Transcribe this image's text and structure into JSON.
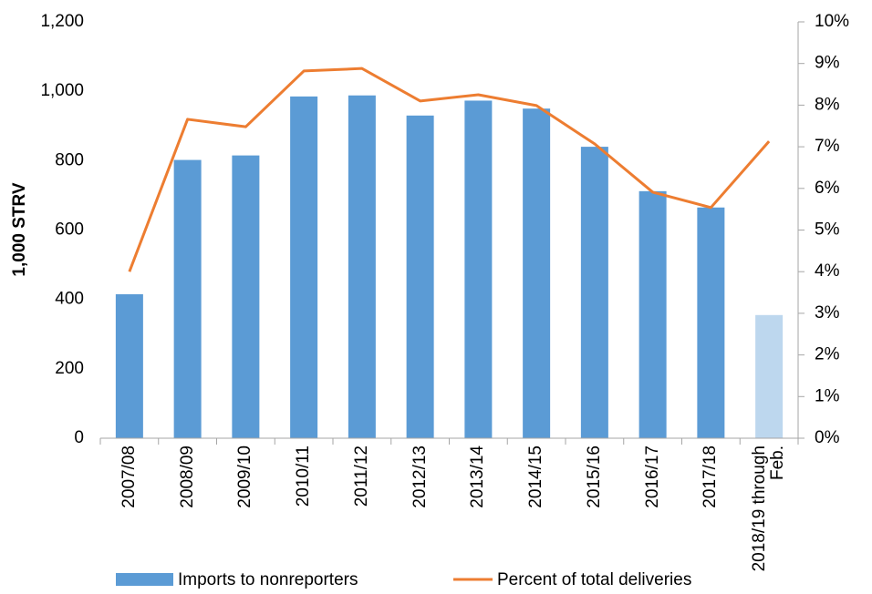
{
  "chart_data": {
    "type": "bar-line",
    "y_axis_label": "1,000 STRV",
    "categories": [
      "2007/08",
      "2008/09",
      "2009/10",
      "2010/11",
      "2011/12",
      "2012/13",
      "2013/14",
      "2014/15",
      "2015/16",
      "2016/17",
      "2017/18",
      "2018/19 through Feb."
    ],
    "series": [
      {
        "name": "Imports to nonreporters",
        "type": "bar",
        "color": "#5b9bd5",
        "point_colors": [
          "#5b9bd5",
          "#5b9bd5",
          "#5b9bd5",
          "#5b9bd5",
          "#5b9bd5",
          "#5b9bd5",
          "#5b9bd5",
          "#5b9bd5",
          "#5b9bd5",
          "#5b9bd5",
          "#5b9bd5",
          "#bdd7ee"
        ],
        "values": [
          415,
          802,
          815,
          985,
          988,
          930,
          973,
          950,
          840,
          712,
          665,
          355
        ]
      },
      {
        "name": "Percent of total deliveries",
        "type": "line",
        "axis": "y2",
        "color": "#ed7d31",
        "values": [
          4.0,
          7.66,
          7.48,
          8.82,
          8.88,
          8.1,
          8.25,
          7.99,
          7.07,
          5.91,
          5.54,
          7.13
        ]
      }
    ],
    "ylim": [
      0,
      1200
    ],
    "yticks": [
      0,
      200,
      400,
      600,
      800,
      {
        "value": 1000,
        "label": "1,000"
      },
      {
        "value": 1200,
        "label": "1,200"
      }
    ],
    "y2lim": [
      0,
      10
    ],
    "y2ticks": [
      {
        "value": 0,
        "label": "0%"
      },
      {
        "value": 1,
        "label": "1%"
      },
      {
        "value": 2,
        "label": "2%"
      },
      {
        "value": 3,
        "label": "3%"
      },
      {
        "value": 4,
        "label": "4%"
      },
      {
        "value": 5,
        "label": "5%"
      },
      {
        "value": 6,
        "label": "6%"
      },
      {
        "value": 7,
        "label": "7%"
      },
      {
        "value": 8,
        "label": "8%"
      },
      {
        "value": 9,
        "label": "9%"
      },
      {
        "value": 10,
        "label": "10%"
      }
    ],
    "legend": "bottom"
  }
}
